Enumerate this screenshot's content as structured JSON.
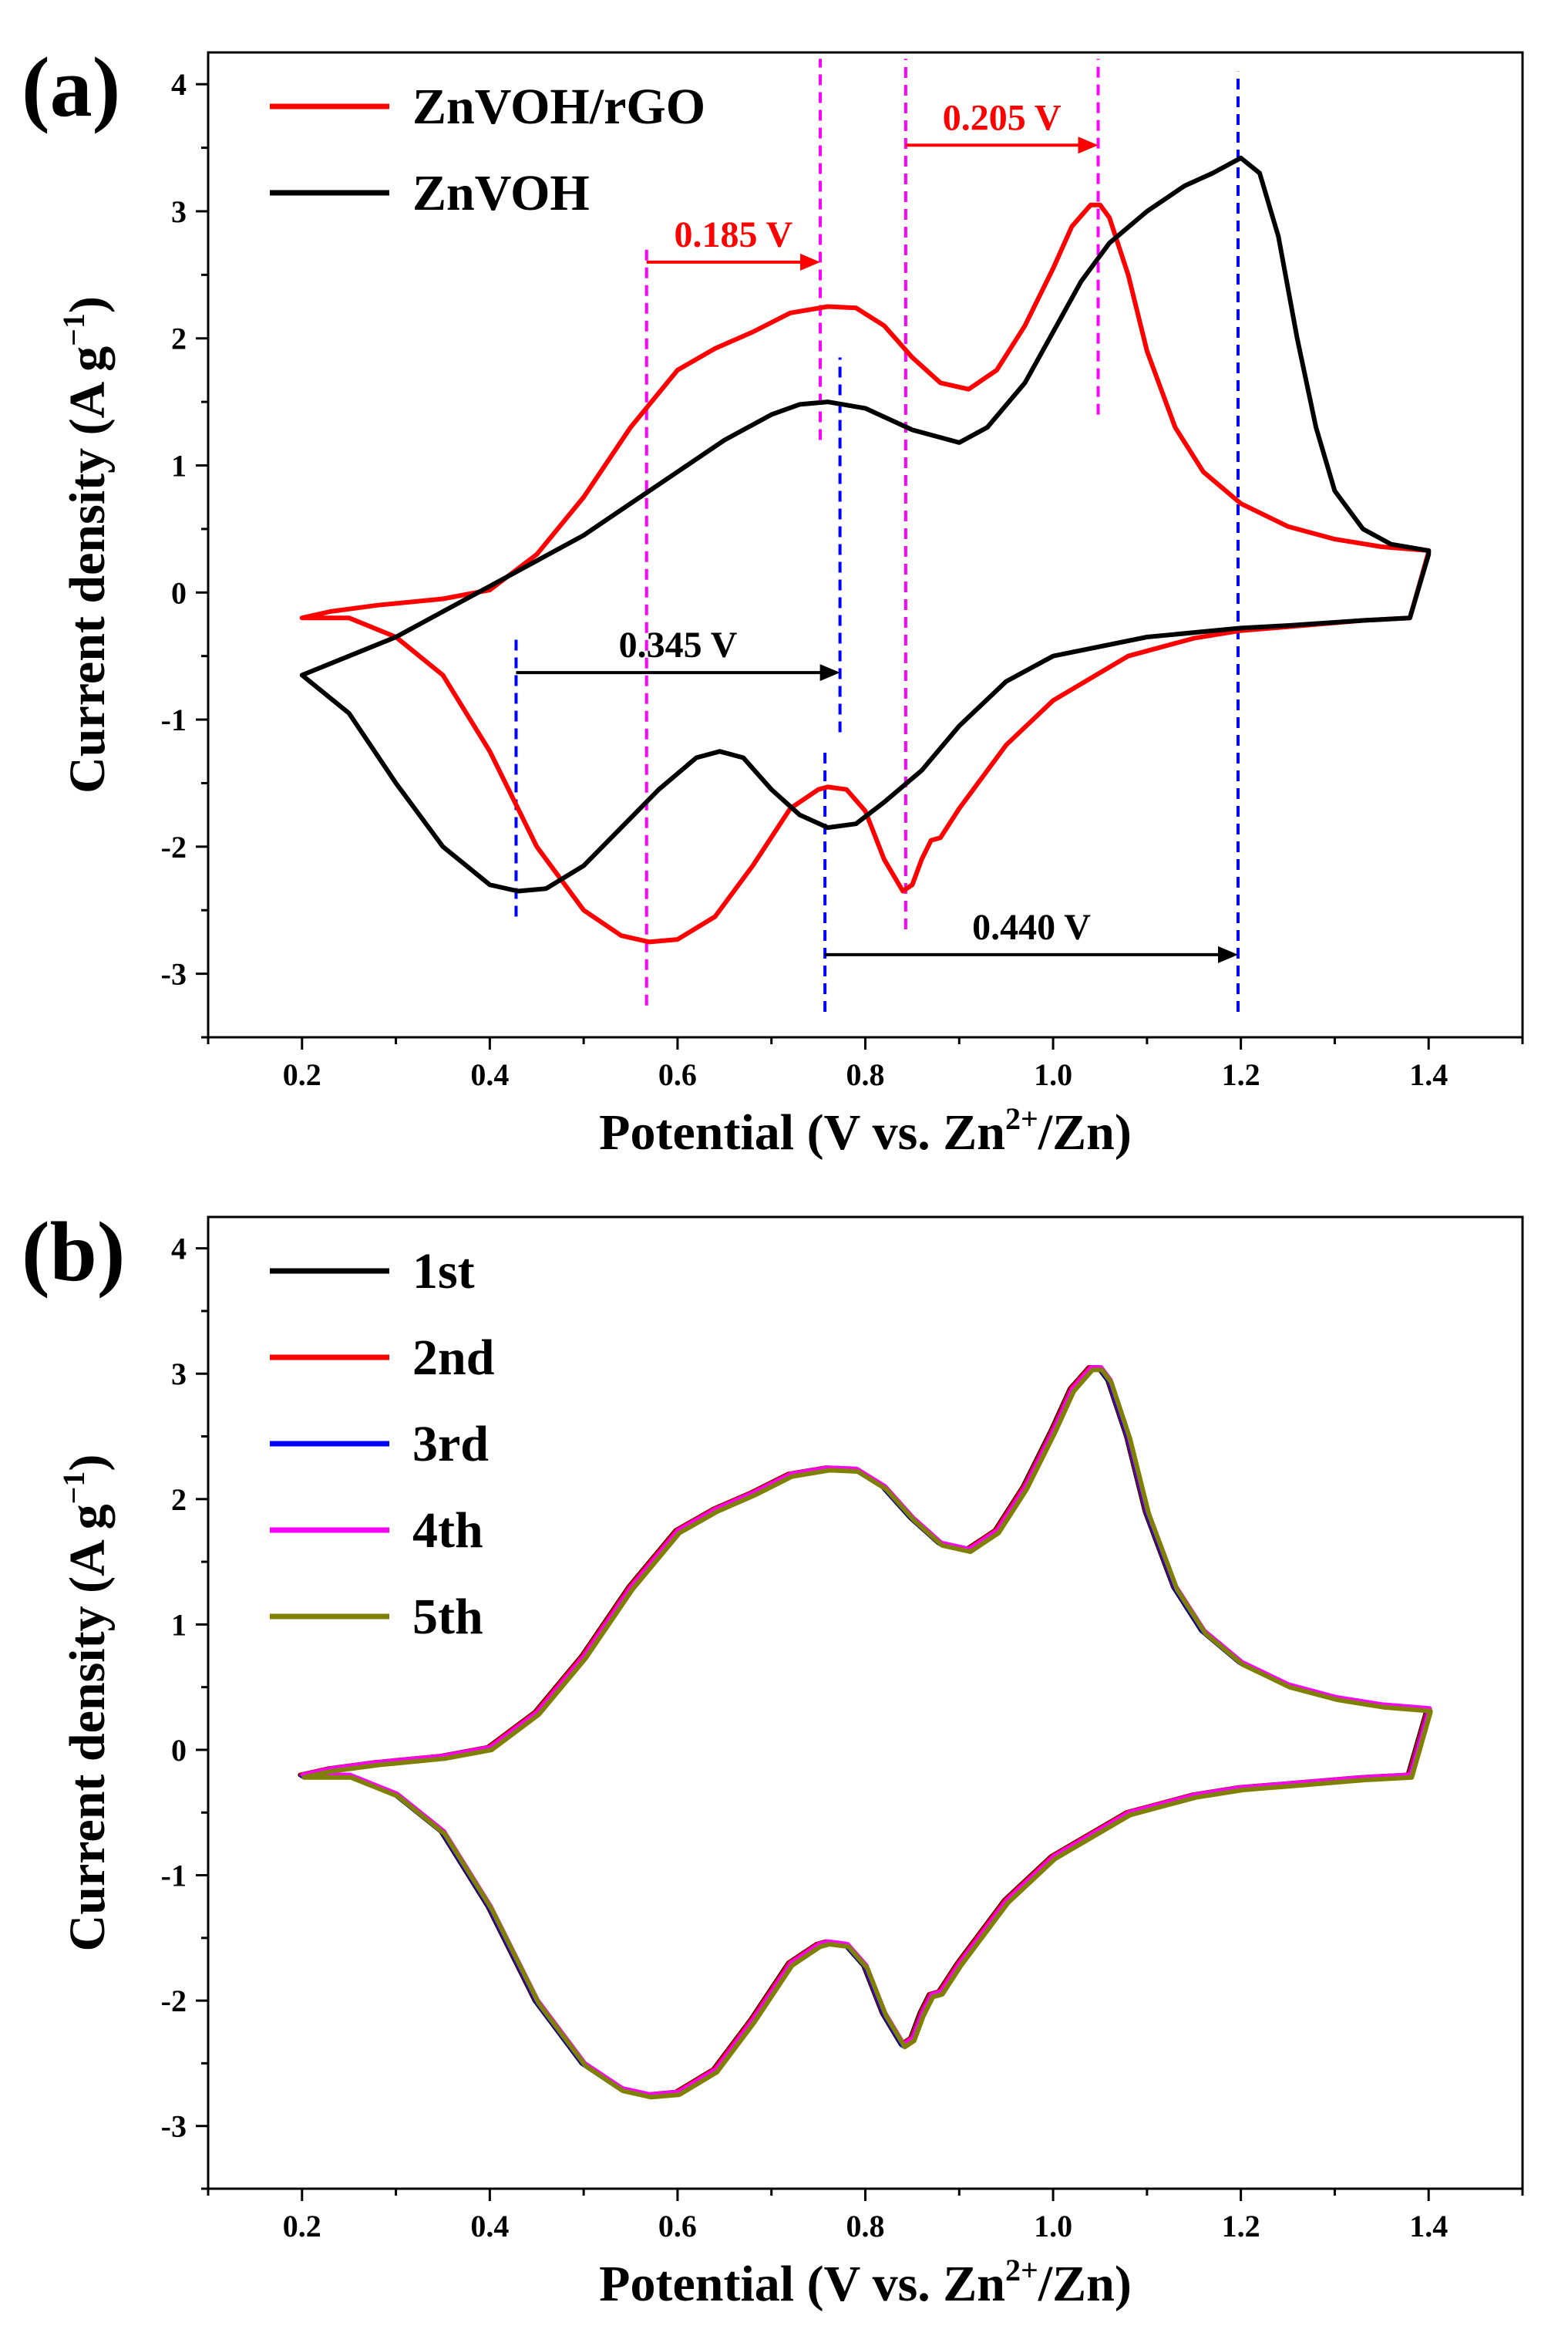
{
  "chart_data": [
    {
      "panel_label": "(a)",
      "type": "line",
      "xlabel": "Potential (V vs. Zn2+/Zn)",
      "xlabel_main": "Potential (V vs. Zn",
      "xlabel_sup": "2+",
      "xlabel_tail": "/Zn)",
      "ylabel": "Current density (A g−1)",
      "ylabel_main": "Current density (A g",
      "ylabel_sup": "−1",
      "ylabel_tail": ")",
      "xlim": [
        0.1,
        1.5
      ],
      "ylim": [
        -3.5,
        4.25
      ],
      "xticks": [
        0.2,
        0.4,
        0.6,
        0.8,
        1.0,
        1.2,
        1.4
      ],
      "xtick_labels": [
        "0.2",
        "0.4",
        "0.6",
        "0.8",
        "1.0",
        "1.2",
        "1.4"
      ],
      "yticks": [
        -3,
        -2,
        -1,
        0,
        1,
        2,
        3,
        4
      ],
      "ytick_labels": [
        "-3",
        "-2",
        "-1",
        "0",
        "1",
        "2",
        "3",
        "4"
      ],
      "legend_position": "top-left",
      "series": [
        {
          "name": "ZnVOH/rGO",
          "color": "#ff0000",
          "x": [
            0.2,
            0.23,
            0.28,
            0.35,
            0.4,
            0.45,
            0.5,
            0.55,
            0.6,
            0.64,
            0.68,
            0.72,
            0.76,
            0.79,
            0.82,
            0.85,
            0.88,
            0.91,
            0.94,
            0.97,
            1.0,
            1.02,
            1.04,
            1.05,
            1.06,
            1.08,
            1.1,
            1.13,
            1.16,
            1.2,
            1.25,
            1.3,
            1.35,
            1.4,
            1.4,
            1.38,
            1.33,
            1.25,
            1.2,
            1.15,
            1.08,
            1.0,
            0.95,
            0.9,
            0.88,
            0.87,
            0.86,
            0.85,
            0.84,
            0.82,
            0.8,
            0.78,
            0.76,
            0.75,
            0.72,
            0.68,
            0.64,
            0.6,
            0.57,
            0.54,
            0.5,
            0.45,
            0.4,
            0.35,
            0.3,
            0.25,
            0.2
          ],
          "y": [
            -0.2,
            -0.15,
            -0.1,
            -0.05,
            0.02,
            0.3,
            0.75,
            1.3,
            1.75,
            1.92,
            2.05,
            2.2,
            2.25,
            2.24,
            2.1,
            1.85,
            1.65,
            1.6,
            1.75,
            2.1,
            2.55,
            2.88,
            3.05,
            3.05,
            2.95,
            2.5,
            1.9,
            1.3,
            0.95,
            0.7,
            0.52,
            0.42,
            0.36,
            0.33,
            0.32,
            -0.2,
            -0.22,
            -0.27,
            -0.3,
            -0.36,
            -0.5,
            -0.85,
            -1.2,
            -1.7,
            -1.93,
            -1.95,
            -2.1,
            -2.3,
            -2.35,
            -2.1,
            -1.72,
            -1.55,
            -1.53,
            -1.55,
            -1.7,
            -2.15,
            -2.55,
            -2.73,
            -2.75,
            -2.7,
            -2.5,
            -2.0,
            -1.25,
            -0.65,
            -0.35,
            -0.2,
            -0.2
          ]
        },
        {
          "name": "ZnVOH",
          "color": "#000000",
          "x": [
            0.2,
            0.25,
            0.3,
            0.35,
            0.4,
            0.45,
            0.5,
            0.55,
            0.6,
            0.65,
            0.7,
            0.73,
            0.76,
            0.8,
            0.85,
            0.9,
            0.93,
            0.97,
            1.0,
            1.03,
            1.06,
            1.1,
            1.14,
            1.17,
            1.2,
            1.22,
            1.24,
            1.26,
            1.28,
            1.3,
            1.33,
            1.36,
            1.4,
            1.4,
            1.38,
            1.33,
            1.25,
            1.2,
            1.1,
            1.0,
            0.95,
            0.9,
            0.86,
            0.82,
            0.79,
            0.76,
            0.73,
            0.7,
            0.67,
            0.645,
            0.62,
            0.58,
            0.54,
            0.5,
            0.46,
            0.43,
            0.4,
            0.35,
            0.3,
            0.25,
            0.2
          ],
          "y": [
            -0.65,
            -0.5,
            -0.35,
            -0.15,
            0.05,
            0.25,
            0.45,
            0.7,
            0.95,
            1.2,
            1.4,
            1.48,
            1.5,
            1.45,
            1.28,
            1.18,
            1.3,
            1.65,
            2.05,
            2.45,
            2.75,
            3.0,
            3.2,
            3.3,
            3.42,
            3.3,
            2.8,
            2.0,
            1.3,
            0.8,
            0.5,
            0.38,
            0.33,
            0.3,
            -0.2,
            -0.22,
            -0.26,
            -0.28,
            -0.35,
            -0.5,
            -0.7,
            -1.05,
            -1.4,
            -1.65,
            -1.82,
            -1.85,
            -1.75,
            -1.55,
            -1.3,
            -1.25,
            -1.3,
            -1.55,
            -1.85,
            -2.15,
            -2.33,
            -2.35,
            -2.3,
            -2.0,
            -1.5,
            -0.95,
            -0.65
          ]
        }
      ],
      "annotations": [
        {
          "text": "0.185 V",
          "color": "#ff0000",
          "from_x": 0.567,
          "to_x": 0.752,
          "y": 2.6
        },
        {
          "text": "0.205 V",
          "color": "#ff0000",
          "from_x": 0.843,
          "to_x": 1.048,
          "y": 3.52
        },
        {
          "text": "0.345 V",
          "color": "#000000",
          "from_x": 0.428,
          "to_x": 0.773,
          "y": -0.63
        },
        {
          "text": "0.440 V",
          "color": "#000000",
          "from_x": 0.757,
          "to_x": 1.197,
          "y": -2.85
        }
      ],
      "guides": [
        {
          "x": 0.567,
          "color": "#ff00ff",
          "y_from": -3.25,
          "y_to": 2.7
        },
        {
          "x": 0.752,
          "color": "#ff00ff",
          "y_from": 1.2,
          "y_to": 4.2
        },
        {
          "x": 0.843,
          "color": "#ff00ff",
          "y_from": -2.65,
          "y_to": 4.2
        },
        {
          "x": 1.048,
          "color": "#ff00ff",
          "y_from": 1.4,
          "y_to": 4.2
        },
        {
          "x": 0.428,
          "color": "#0000ff",
          "y_from": -2.55,
          "y_to": -0.35
        },
        {
          "x": 0.773,
          "color": "#0000ff",
          "y_from": -1.1,
          "y_to": 1.85
        },
        {
          "x": 0.757,
          "color": "#0000ff",
          "y_from": -3.3,
          "y_to": -1.25
        },
        {
          "x": 1.197,
          "color": "#0000ff",
          "y_from": -3.3,
          "y_to": 4.1
        }
      ]
    },
    {
      "panel_label": "(b)",
      "type": "line",
      "xlabel": "Potential (V vs. Zn2+/Zn)",
      "xlabel_main": "Potential (V vs. Zn",
      "xlabel_sup": "2+",
      "xlabel_tail": "/Zn)",
      "ylabel": "Current density (A g−1)",
      "ylabel_main": "Current density (A g",
      "ylabel_sup": "−1",
      "ylabel_tail": ")",
      "xlim": [
        0.1,
        1.5
      ],
      "ylim": [
        -3.5,
        4.25
      ],
      "xticks": [
        0.2,
        0.4,
        0.6,
        0.8,
        1.0,
        1.2,
        1.4
      ],
      "xtick_labels": [
        "0.2",
        "0.4",
        "0.6",
        "0.8",
        "1.0",
        "1.2",
        "1.4"
      ],
      "yticks": [
        -3,
        -2,
        -1,
        0,
        1,
        2,
        3,
        4
      ],
      "ytick_labels": [
        "-3",
        "-2",
        "-1",
        "0",
        "1",
        "2",
        "3",
        "4"
      ],
      "legend_position": "top-left",
      "shared_x": [
        0.2,
        0.23,
        0.28,
        0.35,
        0.4,
        0.45,
        0.5,
        0.55,
        0.6,
        0.64,
        0.68,
        0.72,
        0.76,
        0.79,
        0.82,
        0.85,
        0.88,
        0.91,
        0.94,
        0.97,
        1.0,
        1.02,
        1.04,
        1.05,
        1.06,
        1.08,
        1.1,
        1.13,
        1.16,
        1.2,
        1.25,
        1.3,
        1.35,
        1.4,
        1.4,
        1.38,
        1.33,
        1.25,
        1.2,
        1.15,
        1.08,
        1.0,
        0.95,
        0.9,
        0.88,
        0.87,
        0.86,
        0.85,
        0.84,
        0.82,
        0.8,
        0.78,
        0.76,
        0.75,
        0.72,
        0.68,
        0.64,
        0.6,
        0.57,
        0.54,
        0.5,
        0.45,
        0.4,
        0.35,
        0.3,
        0.25,
        0.2
      ],
      "shared_y": [
        -0.2,
        -0.15,
        -0.1,
        -0.05,
        0.02,
        0.3,
        0.75,
        1.3,
        1.75,
        1.92,
        2.05,
        2.2,
        2.25,
        2.24,
        2.1,
        1.85,
        1.65,
        1.6,
        1.75,
        2.1,
        2.55,
        2.88,
        3.05,
        3.05,
        2.95,
        2.5,
        1.9,
        1.3,
        0.95,
        0.7,
        0.52,
        0.42,
        0.36,
        0.33,
        0.32,
        -0.2,
        -0.22,
        -0.27,
        -0.3,
        -0.36,
        -0.5,
        -0.85,
        -1.2,
        -1.7,
        -1.93,
        -1.95,
        -2.1,
        -2.3,
        -2.35,
        -2.1,
        -1.72,
        -1.55,
        -1.53,
        -1.55,
        -1.7,
        -2.15,
        -2.55,
        -2.73,
        -2.75,
        -2.7,
        -2.5,
        -2.0,
        -1.25,
        -0.65,
        -0.35,
        -0.2,
        -0.2
      ],
      "series": [
        {
          "name": "1st",
          "color": "#000000",
          "x_offset": -0.002,
          "y_offset": 0.0
        },
        {
          "name": "2nd",
          "color": "#ff0000",
          "x_offset": -0.001,
          "y_offset": 0.0
        },
        {
          "name": "3rd",
          "color": "#0000ff",
          "x_offset": 0.0,
          "y_offset": -0.01
        },
        {
          "name": "4th",
          "color": "#ff00ff",
          "x_offset": 0.001,
          "y_offset": 0.0
        },
        {
          "name": "5th",
          "color": "#808000",
          "x_offset": 0.002,
          "y_offset": -0.02
        }
      ]
    }
  ]
}
